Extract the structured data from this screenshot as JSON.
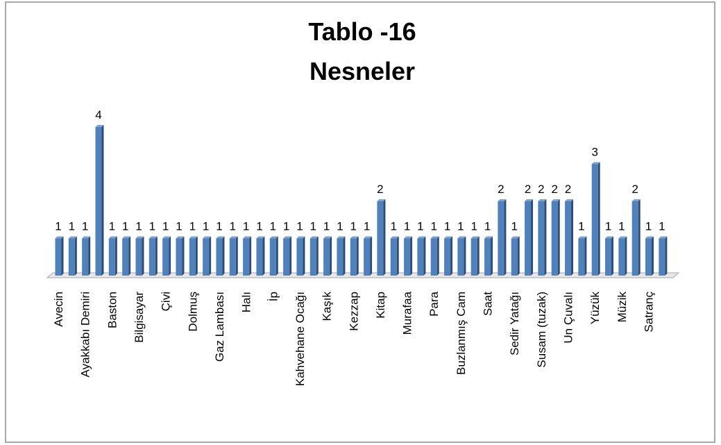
{
  "chart_data": {
    "type": "bar",
    "title": "Tablo -16",
    "subtitle": "Nesneler",
    "categories": [
      "Avecin",
      null,
      "Ayakkabı Demiri",
      null,
      "Baston",
      null,
      "Bilgisayar",
      null,
      "Çivi",
      null,
      "Dolmuş",
      null,
      "Gaz Lambası",
      null,
      "Halı",
      null,
      "İp",
      null,
      "Kahvehane Ocağı",
      null,
      "Kaşık",
      null,
      "Kezzap",
      null,
      "Kitap",
      null,
      "Murafaa",
      null,
      "Para",
      null,
      "Buzlanmış Cam",
      null,
      "Saat",
      null,
      "Sedir Yatağı",
      null,
      "Susam (tuzak)",
      null,
      "Un Çuvalı",
      null,
      "Yüzük",
      null,
      "Müzik",
      null,
      "Satranç",
      null
    ],
    "values": [
      1,
      1,
      1,
      4,
      1,
      1,
      1,
      1,
      1,
      1,
      1,
      1,
      1,
      1,
      1,
      1,
      1,
      1,
      1,
      1,
      1,
      1,
      1,
      1,
      2,
      1,
      1,
      1,
      1,
      1,
      1,
      1,
      1,
      2,
      1,
      2,
      2,
      2,
      2,
      1,
      3,
      1,
      1,
      2,
      1,
      1
    ],
    "color": "#4f81bd",
    "ylim": [
      0,
      4
    ]
  }
}
